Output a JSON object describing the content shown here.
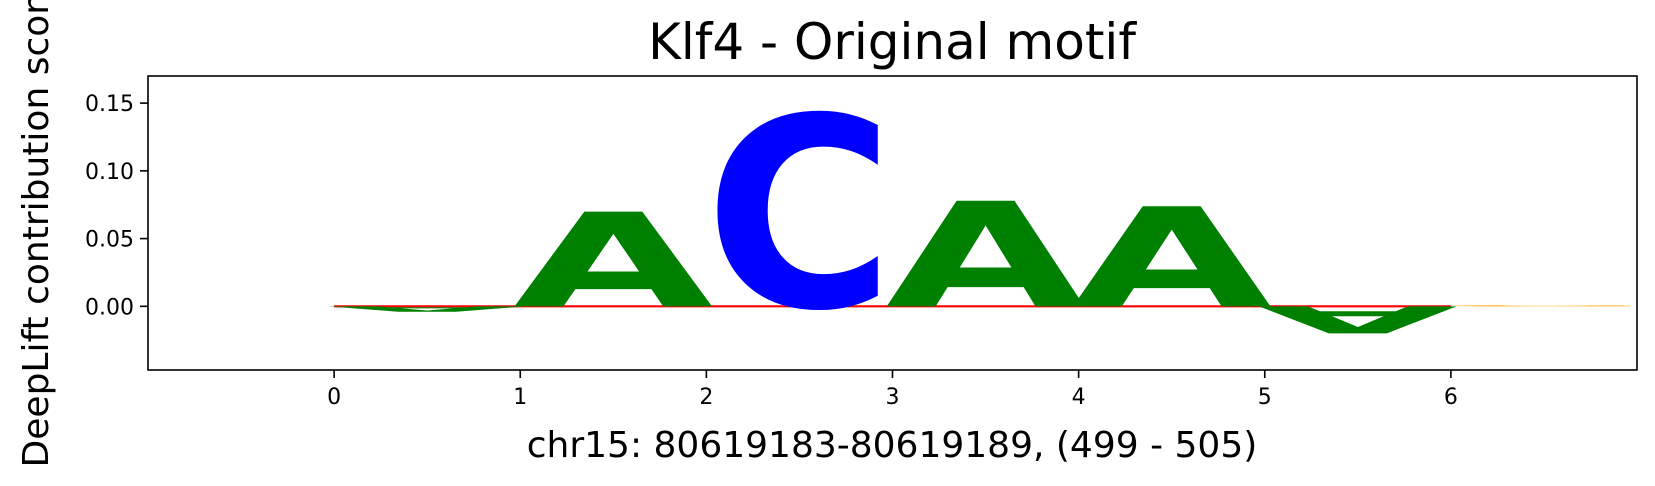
{
  "chart_data": {
    "type": "sequence-logo",
    "title": "Klf4 - Original motif",
    "xlabel": "chr15: 80619183-80619189, (499 - 505)",
    "ylabel": "DeepLift contribution score",
    "xlim": [
      -1,
      7
    ],
    "ylim": [
      -0.047,
      0.17
    ],
    "x_ticks": [
      "0",
      "1",
      "2",
      "3",
      "4",
      "5",
      "6"
    ],
    "y_ticks": [
      "0.00",
      "0.05",
      "0.10",
      "0.15"
    ],
    "colors": {
      "A": "#008000",
      "C": "#0000ff",
      "G": "#ffa500",
      "T": "#ff0000"
    },
    "positions": [
      {
        "x": 0,
        "letters": [
          {
            "base": "A",
            "value": -0.004
          }
        ]
      },
      {
        "x": 1,
        "letters": [
          {
            "base": "A",
            "value": 0.07
          }
        ]
      },
      {
        "x": 2,
        "letters": [
          {
            "base": "C",
            "value": 0.142
          }
        ]
      },
      {
        "x": 3,
        "letters": [
          {
            "base": "A",
            "value": 0.078
          }
        ]
      },
      {
        "x": 4,
        "letters": [
          {
            "base": "A",
            "value": 0.074
          }
        ]
      },
      {
        "x": 5,
        "letters": [
          {
            "base": "A",
            "value": -0.02
          }
        ]
      },
      {
        "x": 6,
        "letters": [
          {
            "base": "G",
            "value": 0.0008
          }
        ]
      }
    ]
  }
}
